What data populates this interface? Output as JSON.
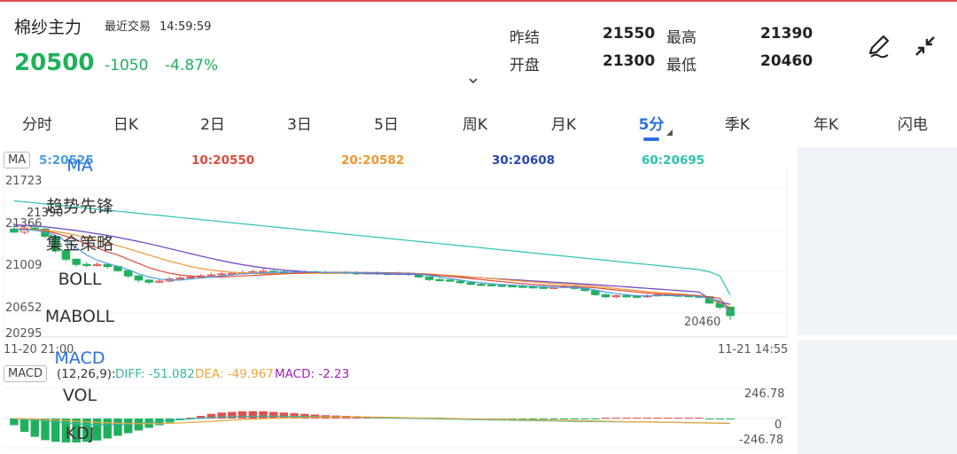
{
  "header": {
    "name": "棉纱主力",
    "trade_label": "最近交易",
    "trade_time": "14:59:59",
    "price": "20500",
    "change": "-1050",
    "change_pct": "-4.87%",
    "stats": {
      "prev_settle_label": "昨结",
      "prev_settle": "21550",
      "high_label": "最高",
      "high": "21390",
      "open_label": "开盘",
      "open": "21300",
      "low_label": "最低",
      "low": "20460"
    },
    "icons": [
      "edit-pen-icon",
      "collapse-icon",
      "chevron-down-icon"
    ]
  },
  "tabs": [
    "分时",
    "日K",
    "2日",
    "3日",
    "5日",
    "周K",
    "月K",
    "5分",
    "季K",
    "年K",
    "闪电"
  ],
  "active_tab": "5分",
  "indicator": {
    "ma_tag": "MA",
    "ma5": "5:20525",
    "ma10": "10:20550",
    "ma20": "20:20582",
    "ma30": "30:20608",
    "ma60": "60:20695",
    "macd_tag": "MACD",
    "macd_params": "(12,26,9):",
    "diff": "DIFF: -51.082",
    "dea": "DEA: -49.967",
    "macd": "MACD: -2.23"
  },
  "colors": {
    "up": "#e0504d",
    "down": "#1fb05c",
    "accent": "#2b6fe0",
    "ma5": "#4a9de0",
    "ma10": "#e04a3c",
    "ma20": "#f0962f",
    "ma30": "#6a3fc8",
    "ma60": "#2bc3b0",
    "diff_line": "#34b5a5",
    "dea_line": "#f0a63a"
  },
  "chart_data": {
    "type": "candlestick",
    "y_ticks": [
      "21723",
      "21366",
      "21009",
      "20652",
      "20295"
    ],
    "ylim": [
      20295,
      21723
    ],
    "x_start": "11-20 21:00",
    "x_end": "11-21 14:55",
    "high_label": "21390",
    "low_label": "20460",
    "macd_ticks": [
      "246.78",
      "0",
      "-246.78"
    ],
    "macd_ylim": [
      -246.78,
      246.78
    ],
    "candles": [
      [
        21330,
        21300,
        21390,
        21290
      ],
      [
        21300,
        21340,
        21360,
        21280
      ],
      [
        21340,
        21330,
        21380,
        21310
      ],
      [
        21330,
        21260,
        21340,
        21240
      ],
      [
        21260,
        21120,
        21270,
        21100
      ],
      [
        21120,
        21040,
        21130,
        21020
      ],
      [
        21040,
        20990,
        21050,
        20970
      ],
      [
        20990,
        20980,
        21010,
        20960
      ],
      [
        20980,
        20990,
        21010,
        20970
      ],
      [
        20990,
        20970,
        21000,
        20950
      ],
      [
        20970,
        20930,
        20980,
        20920
      ],
      [
        20930,
        20880,
        20940,
        20860
      ],
      [
        20880,
        20840,
        20890,
        20820
      ],
      [
        20840,
        20820,
        20850,
        20800
      ],
      [
        20820,
        20830,
        20850,
        20810
      ],
      [
        20830,
        20850,
        20870,
        20820
      ],
      [
        20850,
        20860,
        20880,
        20840
      ],
      [
        20860,
        20870,
        20890,
        20850
      ],
      [
        20870,
        20880,
        20900,
        20860
      ],
      [
        20880,
        20890,
        20910,
        20870
      ],
      [
        20890,
        20900,
        20930,
        20880
      ],
      [
        20900,
        20905,
        20920,
        20890
      ],
      [
        20905,
        20910,
        20930,
        20895
      ],
      [
        20910,
        20920,
        20940,
        20900
      ],
      [
        20920,
        20925,
        20960,
        20910
      ],
      [
        20925,
        20920,
        20940,
        20905
      ],
      [
        20920,
        20915,
        20935,
        20900
      ],
      [
        20915,
        20915,
        20930,
        20900
      ],
      [
        20915,
        20920,
        20935,
        20905
      ],
      [
        20920,
        20915,
        20930,
        20900
      ],
      [
        20915,
        20910,
        20930,
        20895
      ],
      [
        20910,
        20915,
        20925,
        20900
      ],
      [
        20915,
        20910,
        20925,
        20895
      ],
      [
        20910,
        20905,
        20925,
        20890
      ],
      [
        20905,
        20910,
        20920,
        20895
      ],
      [
        20910,
        20905,
        20925,
        20890
      ],
      [
        20905,
        20900,
        20915,
        20885
      ],
      [
        20900,
        20905,
        20920,
        20890
      ],
      [
        20905,
        20895,
        20915,
        20880
      ],
      [
        20895,
        20870,
        20900,
        20860
      ],
      [
        20870,
        20845,
        20875,
        20830
      ],
      [
        20845,
        20840,
        20860,
        20825
      ],
      [
        20840,
        20830,
        20850,
        20820
      ],
      [
        20830,
        20815,
        20840,
        20800
      ],
      [
        20815,
        20800,
        20825,
        20790
      ],
      [
        20800,
        20795,
        20815,
        20780
      ],
      [
        20795,
        20790,
        20810,
        20780
      ],
      [
        20790,
        20785,
        20800,
        20770
      ],
      [
        20785,
        20780,
        20795,
        20770
      ],
      [
        20780,
        20775,
        20795,
        20765
      ],
      [
        20775,
        20770,
        20790,
        20760
      ],
      [
        20770,
        20765,
        20785,
        20755
      ],
      [
        20765,
        20770,
        20785,
        20755
      ],
      [
        20770,
        20780,
        20795,
        20760
      ],
      [
        20780,
        20760,
        20790,
        20750
      ],
      [
        20760,
        20740,
        20765,
        20730
      ],
      [
        20740,
        20700,
        20745,
        20690
      ],
      [
        20700,
        20680,
        20710,
        20670
      ],
      [
        20680,
        20690,
        20700,
        20665
      ],
      [
        20690,
        20685,
        20705,
        20670
      ],
      [
        20685,
        20680,
        20700,
        20665
      ],
      [
        20680,
        20690,
        20705,
        20670
      ],
      [
        20690,
        20700,
        20715,
        20680
      ],
      [
        20700,
        20695,
        20710,
        20685
      ],
      [
        20695,
        20690,
        20705,
        20680
      ],
      [
        20690,
        20685,
        20700,
        20675
      ],
      [
        20685,
        20680,
        20695,
        20665
      ],
      [
        20680,
        20620,
        20685,
        20610
      ],
      [
        20620,
        20580,
        20630,
        20560
      ],
      [
        20580,
        20500,
        20590,
        20460
      ]
    ],
    "ma5": [
      21330,
      21320,
      21320,
      21300,
      21270,
      21210,
      21150,
      21080,
      21030,
      21000,
      20970,
      20940,
      20900,
      20870,
      20850,
      20840,
      20840,
      20850,
      20860,
      20870,
      20880,
      20890,
      20900,
      20905,
      20910,
      20915,
      20915,
      20916,
      20917,
      20917,
      20915,
      20913,
      20912,
      20910,
      20909,
      20907,
      20905,
      20904,
      20902,
      20895,
      20885,
      20870,
      20855,
      20840,
      20825,
      20815,
      20805,
      20798,
      20792,
      20786,
      20780,
      20776,
      20772,
      20770,
      20768,
      20760,
      20745,
      20725,
      20710,
      20700,
      20690,
      20687,
      20690,
      20692,
      20690,
      20688,
      20684,
      20665,
      20640,
      20525
    ],
    "ma10": [
      21330,
      21325,
      21320,
      21310,
      21290,
      21260,
      21225,
      21185,
      21150,
      21110,
      21080,
      21040,
      21000,
      20960,
      20930,
      20905,
      20890,
      20880,
      20870,
      20870,
      20870,
      20875,
      20880,
      20885,
      20890,
      20895,
      20900,
      20905,
      20910,
      20912,
      20914,
      20914,
      20914,
      20913,
      20912,
      20911,
      20910,
      20908,
      20906,
      20902,
      20895,
      20885,
      20875,
      20865,
      20855,
      20845,
      20835,
      20825,
      20815,
      20806,
      20798,
      20792,
      20786,
      20782,
      20778,
      20772,
      20765,
      20755,
      20745,
      20735,
      20725,
      20716,
      20708,
      20702,
      20698,
      20694,
      20690,
      20680,
      20665,
      20550
    ],
    "ma20": [
      21330,
      21328,
      21325,
      21318,
      21305,
      21290,
      21270,
      21245,
      21220,
      21195,
      21170,
      21140,
      21110,
      21080,
      21050,
      21020,
      20995,
      20970,
      20950,
      20935,
      20925,
      20915,
      20910,
      20906,
      20903,
      20902,
      20902,
      20903,
      20904,
      20905,
      20906,
      20907,
      20908,
      20908,
      20908,
      20908,
      20908,
      20907,
      20905,
      20902,
      20898,
      20892,
      20885,
      20878,
      20870,
      20862,
      20854,
      20846,
      20838,
      20830,
      20822,
      20815,
      20808,
      20801,
      20795,
      20788,
      20780,
      20770,
      20760,
      20750,
      20740,
      20730,
      20722,
      20715,
      20708,
      20700,
      20693,
      20660,
      20620,
      20582
    ],
    "ma30": [
      21370,
      21365,
      21358,
      21350,
      21340,
      21328,
      21315,
      21300,
      21284,
      21268,
      21250,
      21230,
      21210,
      21188,
      21165,
      21142,
      21118,
      21094,
      21070,
      21048,
      21026,
      21006,
      20988,
      20972,
      20958,
      20946,
      20936,
      20928,
      20921,
      20916,
      20912,
      20909,
      20907,
      20905,
      20903,
      20901,
      20899,
      20897,
      20895,
      20892,
      20889,
      20885,
      20880,
      20874,
      20868,
      20862,
      20856,
      20850,
      20844,
      20838,
      20832,
      20826,
      20820,
      20814,
      20808,
      20802,
      20796,
      20789,
      20782,
      20775,
      20768,
      20761,
      20754,
      20747,
      20740,
      20733,
      20726,
      20660,
      20630,
      20608
    ],
    "ma60": [
      21600,
      21590,
      21580,
      21570,
      21560,
      21550,
      21540,
      21530,
      21520,
      21510,
      21500,
      21490,
      21480,
      21470,
      21460,
      21450,
      21440,
      21430,
      21420,
      21410,
      21400,
      21390,
      21380,
      21370,
      21360,
      21350,
      21340,
      21330,
      21320,
      21310,
      21300,
      21290,
      21280,
      21270,
      21260,
      21250,
      21240,
      21230,
      21220,
      21210,
      21200,
      21190,
      21180,
      21170,
      21160,
      21150,
      21140,
      21130,
      21120,
      21110,
      21100,
      21090,
      21080,
      21070,
      21060,
      21050,
      21040,
      21030,
      21020,
      21010,
      21000,
      20990,
      20980,
      20970,
      20960,
      20950,
      20940,
      20920,
      20880,
      20695
    ],
    "macd_hist": [
      -20,
      -40,
      -55,
      -65,
      -70,
      -72,
      -72,
      -70,
      -66,
      -60,
      -52,
      -44,
      -36,
      -28,
      -20,
      -12,
      -5,
      2,
      8,
      14,
      18,
      20,
      22,
      22,
      22,
      20,
      18,
      16,
      14,
      12,
      10,
      9,
      8,
      7,
      6,
      5,
      4,
      4,
      3,
      2,
      1,
      0,
      -1,
      -2,
      -2,
      -3,
      -3,
      -3,
      -2,
      -2,
      -2,
      -2,
      -2,
      -1,
      -1,
      -1,
      -1,
      0,
      0,
      0,
      1,
      2,
      2,
      2,
      1,
      1,
      0,
      -1,
      -2,
      -2.23
    ],
    "diff": [
      -2,
      -8,
      -16,
      -26,
      -36,
      -46,
      -55,
      -62,
      -66,
      -68,
      -66,
      -60,
      -52,
      -42,
      -32,
      -22,
      -12,
      -4,
      4,
      10,
      16,
      20,
      22,
      24,
      25,
      25,
      24,
      23,
      22,
      20,
      18,
      16,
      14,
      12,
      10,
      8,
      6,
      4,
      2,
      0,
      -2,
      -4,
      -6,
      -8,
      -10,
      -12,
      -14,
      -16,
      -18,
      -20,
      -22,
      -24,
      -26,
      -28,
      -30,
      -31,
      -32,
      -33,
      -34,
      -35,
      -36,
      -37,
      -38,
      -40,
      -42,
      -44,
      -46,
      -48,
      -50,
      -51.082
    ],
    "dea": [
      0,
      -2,
      -5,
      -10,
      -16,
      -22,
      -29,
      -36,
      -42,
      -47,
      -51,
      -54,
      -55,
      -55,
      -54,
      -51,
      -47,
      -42,
      -36,
      -30,
      -24,
      -18,
      -12,
      -7,
      -2,
      2,
      6,
      9,
      12,
      14,
      15,
      16,
      16,
      16,
      15,
      14,
      13,
      11,
      9,
      7,
      5,
      3,
      1,
      -1,
      -3,
      -5,
      -7,
      -9,
      -11,
      -13,
      -15,
      -17,
      -19,
      -21,
      -23,
      -25,
      -27,
      -29,
      -31,
      -33,
      -35,
      -37,
      -39,
      -41,
      -43,
      -45,
      -47,
      -48,
      -49,
      -49.967
    ]
  },
  "side_panel": {
    "main": [
      "MA",
      "趋势先锋",
      "集金策略",
      "BOLL",
      "MABOLL"
    ],
    "sub": [
      "MACD",
      "VOL",
      "KDJ"
    ],
    "active_main": "MA",
    "active_sub": "MACD"
  }
}
